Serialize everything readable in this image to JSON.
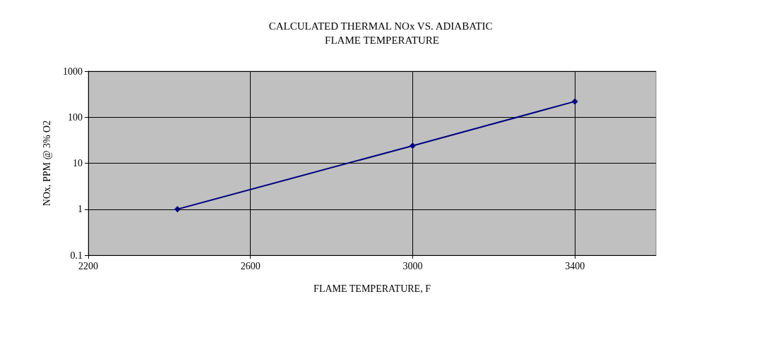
{
  "chart_data": {
    "type": "line",
    "title": "CALCULATED THERMAL NOx VS. ADIABATIC FLAME TEMPERATURE",
    "xlabel": "FLAME TEMPERATURE, F",
    "ylabel": "NOx, PPM @ 3% O2",
    "x": [
      2420,
      3000,
      3400
    ],
    "series": [
      {
        "color": "#000080",
        "values": [
          1,
          24,
          220
        ]
      }
    ],
    "xlim": [
      2200,
      3600
    ],
    "xticks": [
      2200,
      2600,
      3000,
      3400
    ],
    "ylim": [
      0.1,
      1000
    ],
    "yticks": [
      0.1,
      1,
      10,
      100,
      1000
    ],
    "log": "y",
    "grid": true,
    "marker": "diamond",
    "line_style": "solid"
  }
}
